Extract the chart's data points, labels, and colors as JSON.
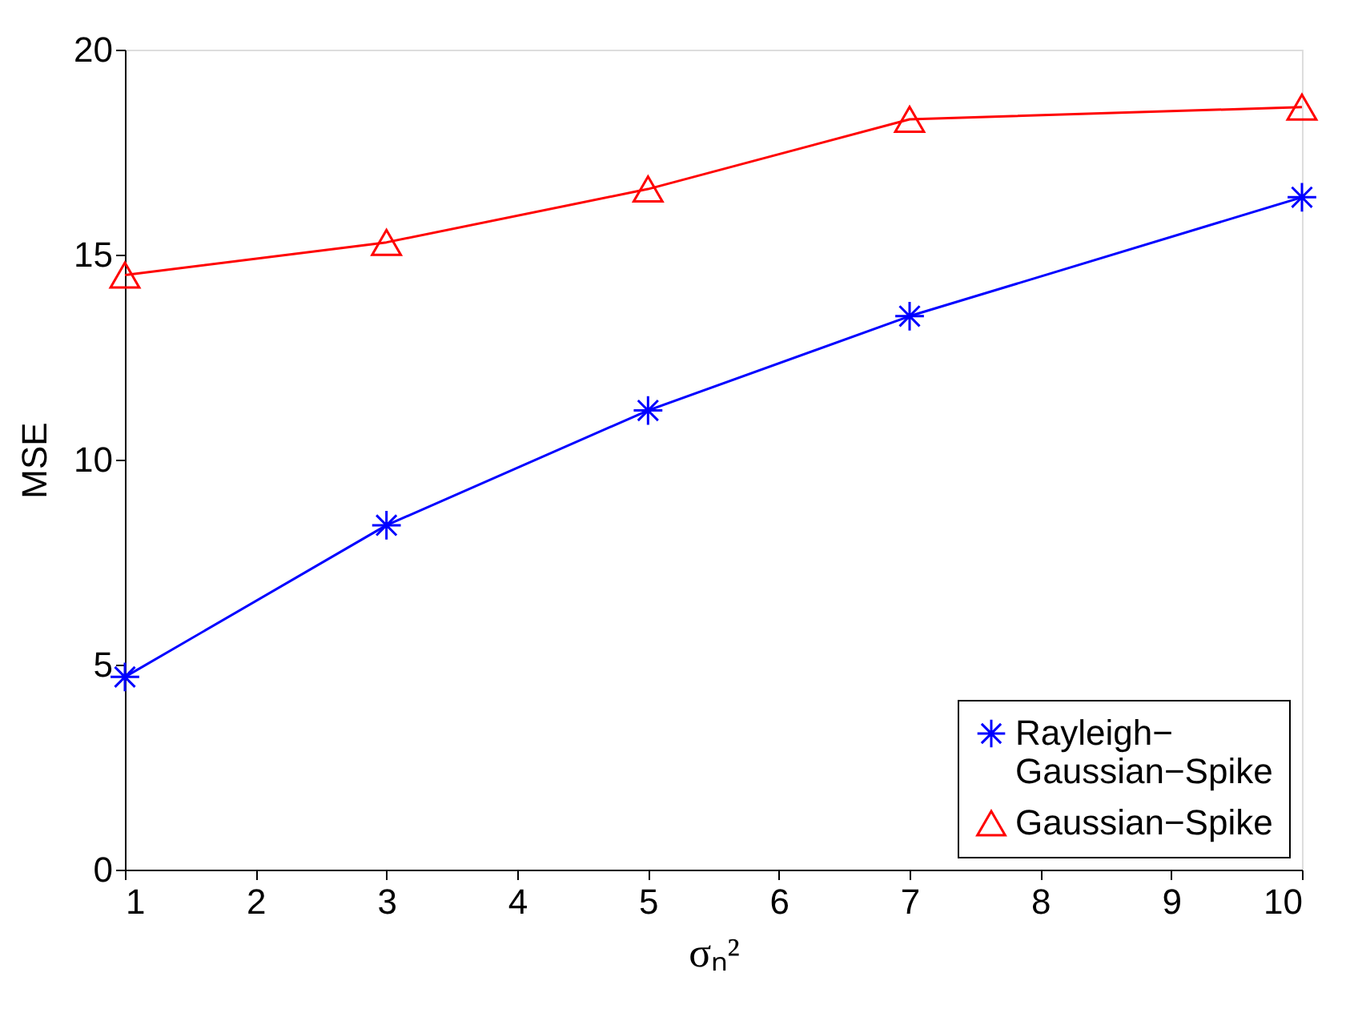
{
  "chart_data": {
    "type": "line",
    "xlabel": "σₙ²",
    "ylabel": "MSE",
    "x": [
      1,
      3,
      5,
      7,
      10
    ],
    "series": [
      {
        "name": "Rayleigh−\nGaussian−Spike",
        "color": "#0000ff",
        "marker": "cross",
        "values": [
          4.7,
          8.4,
          11.2,
          13.5,
          16.4
        ]
      },
      {
        "name": "Gaussian−Spike",
        "color": "#ff0000",
        "marker": "triangle",
        "values": [
          14.5,
          15.3,
          16.6,
          18.3,
          18.6
        ]
      }
    ],
    "xlim": [
      1,
      10
    ],
    "xticks": [
      1,
      2,
      3,
      4,
      5,
      6,
      7,
      8,
      9,
      10
    ],
    "ylim": [
      0,
      20
    ],
    "yticks": [
      0,
      5,
      10,
      15,
      20
    ],
    "grid": false,
    "legend": "bottom right",
    "line_style": "solid"
  }
}
